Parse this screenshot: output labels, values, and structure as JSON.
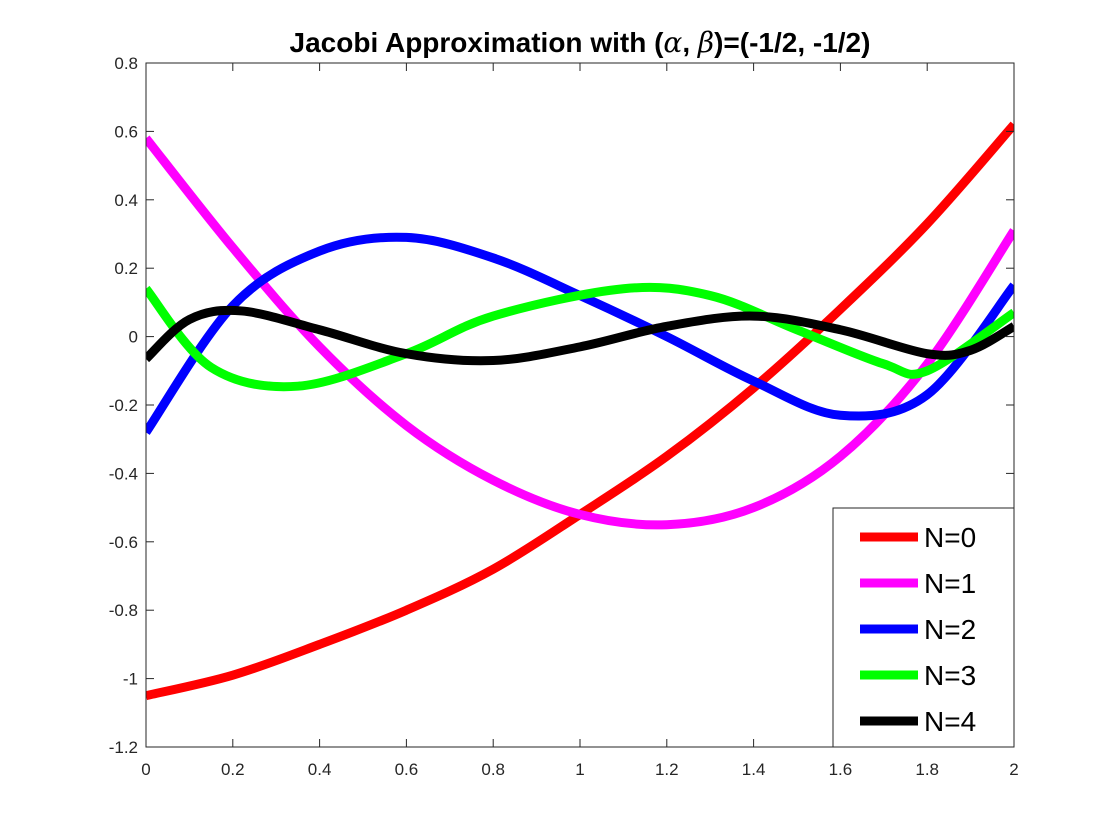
{
  "chart_data": {
    "type": "line",
    "title": {
      "prefix": "Jacobi Approximation with (",
      "alpha": "α",
      "comma": ", ",
      "beta": "β",
      "suffix": ")=(-1/2, -1/2)"
    },
    "xlabel": "",
    "ylabel": "",
    "xlim": [
      0,
      2
    ],
    "ylim": [
      -1.2,
      0.8
    ],
    "xticks": [
      0,
      0.2,
      0.4,
      0.6,
      0.8,
      1,
      1.2,
      1.4,
      1.6,
      1.8,
      2
    ],
    "yticks": [
      -1.2,
      -1,
      -0.8,
      -0.6,
      -0.4,
      -0.2,
      0,
      0.2,
      0.4,
      0.6,
      0.8
    ],
    "grid": false,
    "legend_position": "bottom-right",
    "series": [
      {
        "name": "N=0",
        "color": "#ff0000",
        "points": [
          [
            0,
            -1.05
          ],
          [
            0.2,
            -0.99
          ],
          [
            0.4,
            -0.9
          ],
          [
            0.6,
            -0.8
          ],
          [
            0.8,
            -0.68
          ],
          [
            1,
            -0.52
          ],
          [
            1.2,
            -0.35
          ],
          [
            1.4,
            -0.15
          ],
          [
            1.6,
            0.08
          ],
          [
            1.8,
            0.33
          ],
          [
            2,
            0.62
          ]
        ]
      },
      {
        "name": "N=1",
        "color": "#ff00ff",
        "points": [
          [
            0,
            0.58
          ],
          [
            0.2,
            0.26
          ],
          [
            0.4,
            -0.03
          ],
          [
            0.6,
            -0.26
          ],
          [
            0.8,
            -0.42
          ],
          [
            1,
            -0.52
          ],
          [
            1.2,
            -0.55
          ],
          [
            1.4,
            -0.5
          ],
          [
            1.6,
            -0.35
          ],
          [
            1.8,
            -0.08
          ],
          [
            2,
            0.31
          ]
        ]
      },
      {
        "name": "N=2",
        "color": "#0000ff",
        "points": [
          [
            0,
            -0.28
          ],
          [
            0.2,
            0.09
          ],
          [
            0.4,
            0.25
          ],
          [
            0.6,
            0.29
          ],
          [
            0.8,
            0.23
          ],
          [
            1,
            0.12
          ],
          [
            1.2,
            0
          ],
          [
            1.4,
            -0.13
          ],
          [
            1.6,
            -0.23
          ],
          [
            1.8,
            -0.17
          ],
          [
            2,
            0.15
          ]
        ]
      },
      {
        "name": "N=3",
        "color": "#00ff00",
        "points": [
          [
            0,
            0.14
          ],
          [
            0.15,
            -0.09
          ],
          [
            0.35,
            -0.145
          ],
          [
            0.6,
            -0.05
          ],
          [
            0.8,
            0.06
          ],
          [
            1.1,
            0.14
          ],
          [
            1.3,
            0.12
          ],
          [
            1.5,
            0.02
          ],
          [
            1.7,
            -0.08
          ],
          [
            1.8,
            -0.1
          ],
          [
            2,
            0.07
          ]
        ]
      },
      {
        "name": "N=4",
        "color": "#000000",
        "points": [
          [
            0,
            -0.065
          ],
          [
            0.1,
            0.05
          ],
          [
            0.22,
            0.075
          ],
          [
            0.4,
            0.02
          ],
          [
            0.6,
            -0.05
          ],
          [
            0.8,
            -0.07
          ],
          [
            1,
            -0.03
          ],
          [
            1.2,
            0.03
          ],
          [
            1.4,
            0.06
          ],
          [
            1.6,
            0.02
          ],
          [
            1.8,
            -0.05
          ],
          [
            1.9,
            -0.04
          ],
          [
            2,
            0.03
          ]
        ]
      }
    ]
  }
}
